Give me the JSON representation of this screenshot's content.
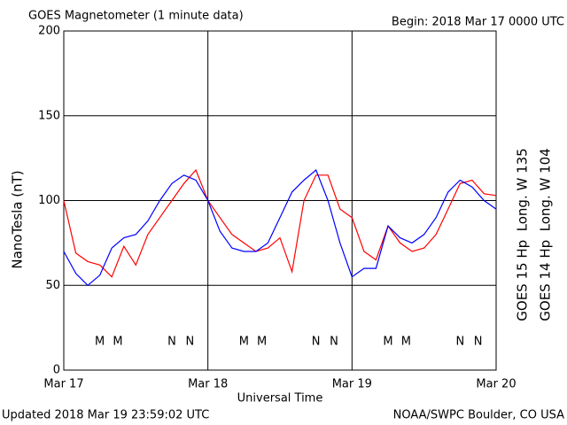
{
  "chart_data": {
    "type": "line",
    "title": "GOES Magnetometer (1 minute data)",
    "subtitle": "Begin:  2018 Mar 17 0000 UTC",
    "y_label": "NanoTesla (nT)",
    "x_label": "Universal Time",
    "footer_left": "Updated 2018 Mar 19 23:59:02 UTC",
    "footer_right": "NOAA/SWPC Boulder, CO USA",
    "x": [
      0,
      2,
      4,
      6,
      8,
      10,
      12,
      14,
      16,
      18,
      20,
      22,
      24,
      26,
      28,
      30,
      32,
      34,
      36,
      38,
      40,
      42,
      44,
      46,
      48,
      50,
      52,
      54,
      56,
      58,
      60,
      62,
      64,
      66,
      68,
      70,
      72
    ],
    "series": [
      {
        "name": "GOES 15 Hp  Long. W 135",
        "color": "#ff0000",
        "values": [
          100,
          69,
          64,
          62,
          55,
          73,
          62,
          80,
          90,
          100,
          110,
          118,
          100,
          90,
          80,
          75,
          70,
          72,
          78,
          58,
          100,
          115,
          115,
          95,
          90,
          70,
          65,
          85,
          75,
          70,
          72,
          80,
          95,
          110,
          112,
          104,
          103
        ]
      },
      {
        "name": "GOES 14 Hp  Long. W 104",
        "color": "#0000ff",
        "values": [
          70,
          57,
          50,
          56,
          72,
          78,
          80,
          88,
          100,
          110,
          115,
          112,
          100,
          82,
          72,
          70,
          70,
          75,
          90,
          105,
          112,
          118,
          100,
          75,
          55,
          60,
          60,
          85,
          78,
          75,
          80,
          90,
          105,
          112,
          108,
          100,
          95
        ]
      }
    ],
    "markers": [
      {
        "text": "M",
        "x": 6,
        "color": "#0000ff"
      },
      {
        "text": "M",
        "x": 9,
        "color": "#ff0000"
      },
      {
        "text": "N",
        "x": 18,
        "color": "#0000ff"
      },
      {
        "text": "N",
        "x": 21,
        "color": "#ff0000"
      },
      {
        "text": "M",
        "x": 30,
        "color": "#0000ff"
      },
      {
        "text": "M",
        "x": 33,
        "color": "#ff0000"
      },
      {
        "text": "N",
        "x": 42,
        "color": "#0000ff"
      },
      {
        "text": "N",
        "x": 45,
        "color": "#ff0000"
      },
      {
        "text": "M",
        "x": 54,
        "color": "#0000ff"
      },
      {
        "text": "M",
        "x": 57,
        "color": "#ff0000"
      },
      {
        "text": "N",
        "x": 66,
        "color": "#0000ff"
      },
      {
        "text": "N",
        "x": 69,
        "color": "#ff0000"
      }
    ],
    "xlim": [
      0,
      72
    ],
    "xticks": [
      {
        "value": 0,
        "label": "Mar 17"
      },
      {
        "value": 24,
        "label": "Mar 18"
      },
      {
        "value": 48,
        "label": "Mar 19"
      },
      {
        "value": 72,
        "label": "Mar 20"
      }
    ],
    "ylim": [
      0,
      200
    ],
    "yticks": [
      0,
      50,
      100,
      150,
      200
    ],
    "grid": true
  }
}
